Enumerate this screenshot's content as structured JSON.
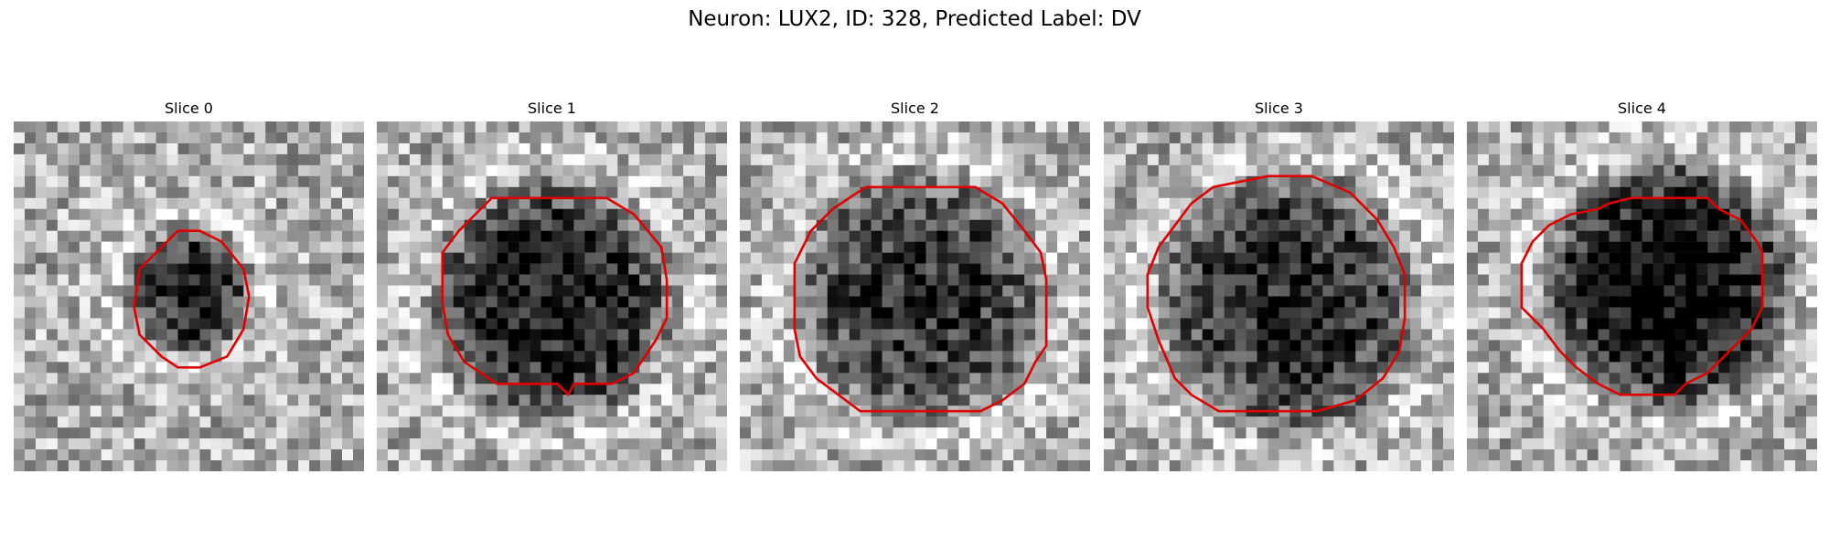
{
  "figure": {
    "title": "Neuron: LUX2, ID: 328, Predicted Label: DV"
  },
  "colors": {
    "contour": "#e00000",
    "background": "#ffffff"
  },
  "grid_size": 32,
  "panels": [
    {
      "title": "Slice 0",
      "seed": 11,
      "blob": {
        "cx": 16.0,
        "cy": 15.5,
        "r": 5.0,
        "depth": 0.55
      },
      "contour": [
        [
          15,
          10
        ],
        [
          17,
          10
        ],
        [
          19,
          11
        ],
        [
          21,
          13.5
        ],
        [
          21.5,
          16
        ],
        [
          21,
          19
        ],
        [
          19.5,
          21.5
        ],
        [
          17,
          22.5
        ],
        [
          15,
          22.5
        ],
        [
          13.5,
          21.5
        ],
        [
          11.5,
          19.5
        ],
        [
          11,
          17
        ],
        [
          11.5,
          13.5
        ],
        [
          13.5,
          11.5
        ]
      ]
    },
    {
      "title": "Slice 1",
      "seed": 23,
      "blob": {
        "cx": 16.0,
        "cy": 16.5,
        "r": 10.5,
        "depth": 0.6
      },
      "contour": [
        [
          10.5,
          7
        ],
        [
          21,
          7
        ],
        [
          23.5,
          8.5
        ],
        [
          26,
          11.5
        ],
        [
          26.5,
          14.5
        ],
        [
          26.5,
          18
        ],
        [
          25.5,
          20
        ],
        [
          23.5,
          23
        ],
        [
          21.5,
          24
        ],
        [
          18,
          24
        ],
        [
          17.5,
          25
        ],
        [
          16.5,
          24
        ],
        [
          11,
          24
        ],
        [
          8,
          22
        ],
        [
          6.5,
          19.5
        ],
        [
          6,
          16.5
        ],
        [
          6,
          12
        ],
        [
          7.5,
          10
        ],
        [
          9.5,
          8
        ]
      ]
    },
    {
      "title": "Slice 2",
      "seed": 37,
      "blob": {
        "cx": 16.5,
        "cy": 16.0,
        "r": 11.0,
        "depth": 0.5
      },
      "contour": [
        [
          11.5,
          6
        ],
        [
          21.5,
          6
        ],
        [
          24,
          7.5
        ],
        [
          26,
          10
        ],
        [
          27.5,
          12
        ],
        [
          28,
          14.5
        ],
        [
          28,
          20.5
        ],
        [
          27,
          22
        ],
        [
          26,
          24
        ],
        [
          24,
          25.5
        ],
        [
          22,
          26.5
        ],
        [
          11,
          26.5
        ],
        [
          9,
          25
        ],
        [
          7,
          23.5
        ],
        [
          5.5,
          21.5
        ],
        [
          5,
          19
        ],
        [
          5,
          13
        ],
        [
          6.5,
          10
        ],
        [
          8.5,
          8
        ],
        [
          10,
          7
        ]
      ]
    },
    {
      "title": "Slice 3",
      "seed": 49,
      "blob": {
        "cx": 17.0,
        "cy": 16.5,
        "r": 11.5,
        "depth": 0.55
      },
      "contour": [
        [
          10,
          6
        ],
        [
          15,
          5
        ],
        [
          19,
          5
        ],
        [
          22.5,
          6.5
        ],
        [
          25,
          9
        ],
        [
          26.5,
          11.5
        ],
        [
          27.5,
          14
        ],
        [
          27.5,
          18
        ],
        [
          27,
          21
        ],
        [
          25.5,
          23.5
        ],
        [
          23,
          25.5
        ],
        [
          19.5,
          26.5
        ],
        [
          14,
          26.5
        ],
        [
          10.5,
          26.5
        ],
        [
          8,
          25
        ],
        [
          6.5,
          23.5
        ],
        [
          5,
          20
        ],
        [
          4,
          17
        ],
        [
          4,
          14
        ],
        [
          5,
          11.5
        ],
        [
          6.5,
          9.5
        ],
        [
          8,
          7.5
        ]
      ]
    },
    {
      "title": "Slice 4",
      "seed": 61,
      "blob": {
        "cx": 18.5,
        "cy": 15.0,
        "r": 11.0,
        "depth": 0.7
      },
      "contour": [
        [
          12,
          8
        ],
        [
          13,
          7.5
        ],
        [
          15,
          7
        ],
        [
          22,
          7
        ],
        [
          23,
          8
        ],
        [
          25,
          9
        ],
        [
          26.5,
          11
        ],
        [
          27,
          12
        ],
        [
          27,
          17
        ],
        [
          26,
          19
        ],
        [
          25,
          20
        ],
        [
          23.5,
          21.5
        ],
        [
          22,
          23
        ],
        [
          20,
          24
        ],
        [
          19,
          25
        ],
        [
          14,
          25
        ],
        [
          12,
          24
        ],
        [
          10,
          22.5
        ],
        [
          8.5,
          21
        ],
        [
          7,
          19
        ],
        [
          5,
          17
        ],
        [
          5,
          13
        ],
        [
          6,
          11
        ],
        [
          7.5,
          9.5
        ],
        [
          9.5,
          8.5
        ]
      ]
    }
  ]
}
